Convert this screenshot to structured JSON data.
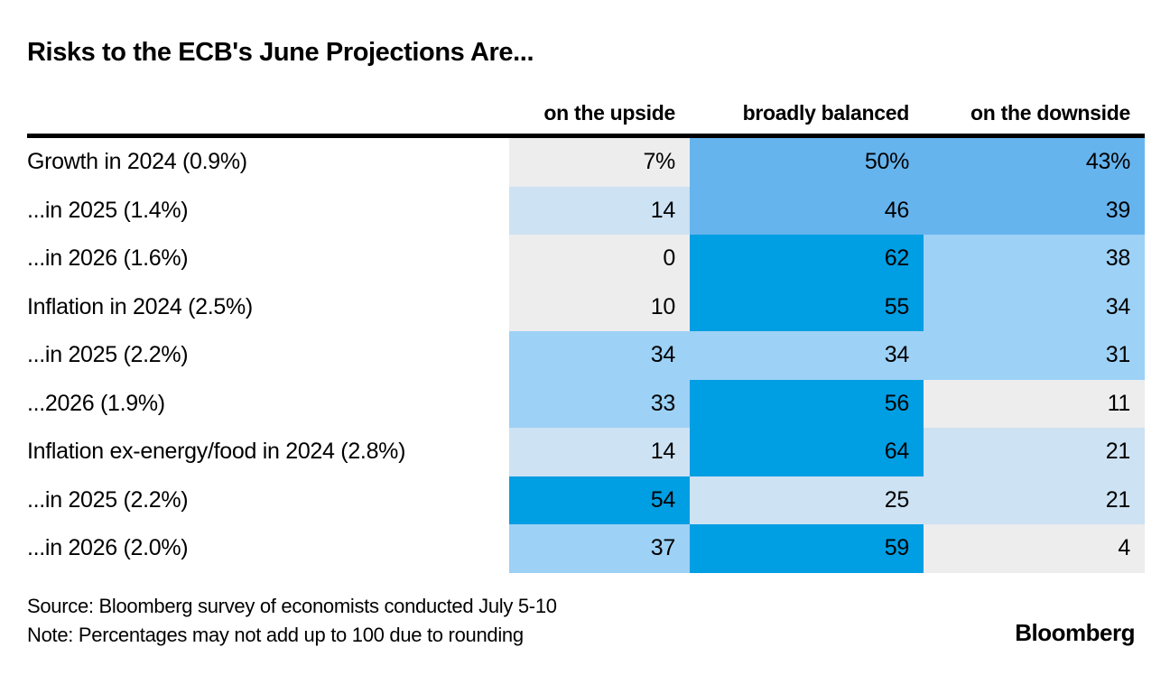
{
  "title": "Risks to the ECB's June Projections Are...",
  "chart_data": {
    "type": "heatmap",
    "title": "Risks to the ECB's June Projections Are...",
    "columns": [
      "on the upside",
      "broadly balanced",
      "on the downside"
    ],
    "unit": "percent of surveyed economists",
    "palette": [
      "#ededed",
      "#cde2f3",
      "#9dd1f6",
      "#66b4ee",
      "#009ee3"
    ],
    "palette_note": "index 0 = lowest values (gray), 4 = highest values (strong blue)",
    "rows": [
      {
        "label": "Growth in 2024 (0.9%)",
        "values": [
          7,
          50,
          43
        ],
        "display": [
          "7%",
          "50%",
          "43%"
        ],
        "levels": [
          0,
          3,
          3
        ]
      },
      {
        "label": "...in 2025 (1.4%)",
        "values": [
          14,
          46,
          39
        ],
        "display": [
          "14",
          "46",
          "39"
        ],
        "levels": [
          1,
          3,
          3
        ]
      },
      {
        "label": "...in 2026 (1.6%)",
        "values": [
          0,
          62,
          38
        ],
        "display": [
          "0",
          "62",
          "38"
        ],
        "levels": [
          0,
          4,
          2
        ]
      },
      {
        "label": "Inflation in 2024 (2.5%)",
        "values": [
          10,
          55,
          34
        ],
        "display": [
          "10",
          "55",
          "34"
        ],
        "levels": [
          0,
          4,
          2
        ]
      },
      {
        "label": "...in 2025 (2.2%)",
        "values": [
          34,
          34,
          31
        ],
        "display": [
          "34",
          "34",
          "31"
        ],
        "levels": [
          2,
          2,
          2
        ]
      },
      {
        "label": "...2026 (1.9%)",
        "values": [
          33,
          56,
          11
        ],
        "display": [
          "33",
          "56",
          "11"
        ],
        "levels": [
          2,
          4,
          0
        ]
      },
      {
        "label": "Inflation ex-energy/food in 2024 (2.8%)",
        "values": [
          14,
          64,
          21
        ],
        "display": [
          "14",
          "64",
          "21"
        ],
        "levels": [
          1,
          4,
          1
        ]
      },
      {
        "label": "...in 2025 (2.2%)",
        "values": [
          54,
          25,
          21
        ],
        "display": [
          "54",
          "25",
          "21"
        ],
        "levels": [
          4,
          1,
          1
        ]
      },
      {
        "label": "...in 2026 (2.0%)",
        "values": [
          37,
          59,
          4
        ],
        "display": [
          "37",
          "59",
          "4"
        ],
        "levels": [
          2,
          4,
          0
        ]
      }
    ],
    "legend_position": "none",
    "grid": false
  },
  "footer": {
    "source": "Source: Bloomberg survey of economists conducted July 5-10",
    "note": "Note: Percentages may not add up to 100 due to rounding",
    "brand": "Bloomberg"
  },
  "colors": {
    "background": "#ffffff",
    "text": "#000000",
    "header_rule": "#000000"
  }
}
